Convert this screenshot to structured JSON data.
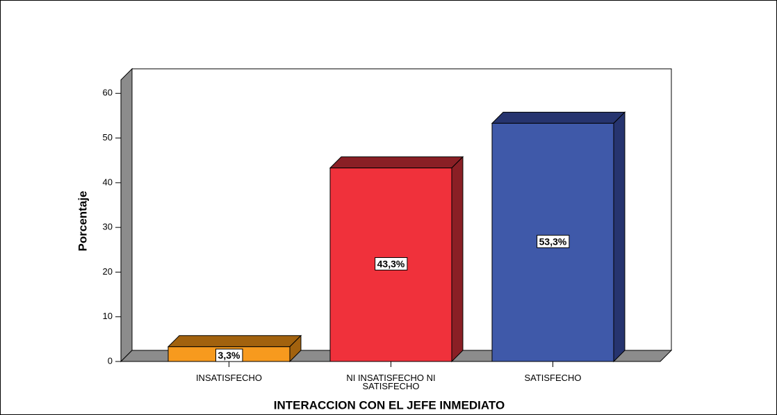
{
  "chart_data": {
    "type": "bar3d",
    "categories": [
      "INSATISFECHO",
      "NI INSATISFECHO NI SATISFECHO",
      "SATISFECHO"
    ],
    "values": [
      3.3,
      43.3,
      53.3
    ],
    "value_labels": [
      "3,3%",
      "43,3%",
      "53,3%"
    ],
    "colors": [
      "#f79a1e",
      "#f0313b",
      "#3f59a9"
    ],
    "top_colors": [
      "#a2620e",
      "#8a1f25",
      "#26346f"
    ],
    "ylabel": "Porcentaje",
    "xlabel": "INTERACCION CON EL JEFE INMEDIATO",
    "ylim": [
      0,
      63
    ],
    "yticks": [
      0,
      10,
      20,
      30,
      40,
      50,
      60
    ]
  }
}
